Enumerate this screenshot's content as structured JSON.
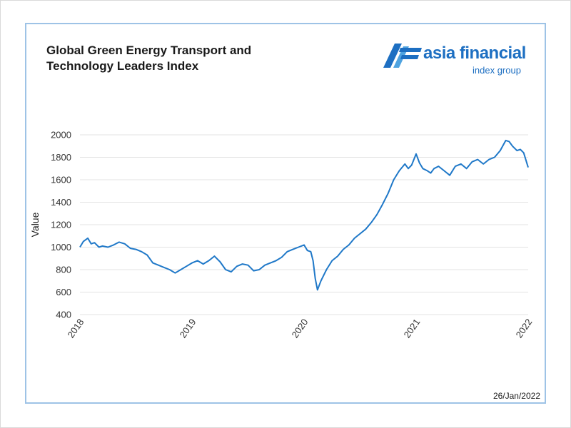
{
  "logo": {
    "main_text": "asia financial",
    "sub_text": "index group",
    "brand_color": "#1d6fc2"
  },
  "footer": {
    "date": "26/Jan/2022"
  },
  "colors": {
    "line": "#1f78c8",
    "grid": "#e3e3e3",
    "border": "#9ec3e6"
  },
  "chart_data": {
    "type": "line",
    "title_lines": [
      "Global Green Energy Transport and",
      "Technology Leaders Index"
    ],
    "xlabel": "",
    "ylabel": "Value",
    "ylim": [
      400,
      2000
    ],
    "yticks": [
      400,
      600,
      800,
      1000,
      1200,
      1400,
      1600,
      1800,
      2000
    ],
    "xlim": [
      2018,
      2022
    ],
    "xticks": [
      "2018",
      "2019",
      "2020",
      "2021",
      "2022"
    ],
    "grid": "horizontal",
    "series": [
      {
        "name": "",
        "x": [
          2018.0,
          2018.03,
          2018.07,
          2018.1,
          2018.13,
          2018.17,
          2018.2,
          2018.25,
          2018.3,
          2018.35,
          2018.4,
          2018.45,
          2018.5,
          2018.55,
          2018.6,
          2018.65,
          2018.7,
          2018.75,
          2018.8,
          2018.85,
          2018.9,
          2018.95,
          2019.0,
          2019.05,
          2019.1,
          2019.15,
          2019.2,
          2019.25,
          2019.3,
          2019.35,
          2019.4,
          2019.45,
          2019.5,
          2019.55,
          2019.6,
          2019.65,
          2019.7,
          2019.75,
          2019.8,
          2019.85,
          2019.9,
          2019.95,
          2020.0,
          2020.03,
          2020.06,
          2020.08,
          2020.1,
          2020.12,
          2020.15,
          2020.2,
          2020.25,
          2020.3,
          2020.35,
          2020.4,
          2020.45,
          2020.5,
          2020.55,
          2020.6,
          2020.65,
          2020.7,
          2020.75,
          2020.8,
          2020.85,
          2020.9,
          2020.93,
          2020.96,
          2021.0,
          2021.03,
          2021.06,
          2021.1,
          2021.13,
          2021.16,
          2021.2,
          2021.25,
          2021.3,
          2021.35,
          2021.4,
          2021.45,
          2021.5,
          2021.55,
          2021.6,
          2021.65,
          2021.7,
          2021.75,
          2021.8,
          2021.83,
          2021.86,
          2021.9,
          2021.93,
          2021.96,
          2022.0
        ],
        "values": [
          1000,
          1050,
          1080,
          1030,
          1040,
          1000,
          1010,
          1000,
          1020,
          1045,
          1030,
          990,
          980,
          960,
          930,
          860,
          840,
          820,
          800,
          770,
          800,
          830,
          860,
          880,
          850,
          880,
          920,
          870,
          800,
          780,
          830,
          850,
          840,
          790,
          800,
          840,
          860,
          880,
          910,
          960,
          980,
          1000,
          1020,
          970,
          960,
          880,
          720,
          620,
          700,
          800,
          880,
          920,
          980,
          1020,
          1080,
          1120,
          1160,
          1220,
          1290,
          1380,
          1480,
          1600,
          1680,
          1740,
          1700,
          1730,
          1830,
          1750,
          1700,
          1680,
          1660,
          1700,
          1720,
          1680,
          1640,
          1720,
          1740,
          1700,
          1760,
          1780,
          1740,
          1780,
          1800,
          1860,
          1950,
          1940,
          1900,
          1860,
          1870,
          1840,
          1710
        ]
      }
    ]
  }
}
